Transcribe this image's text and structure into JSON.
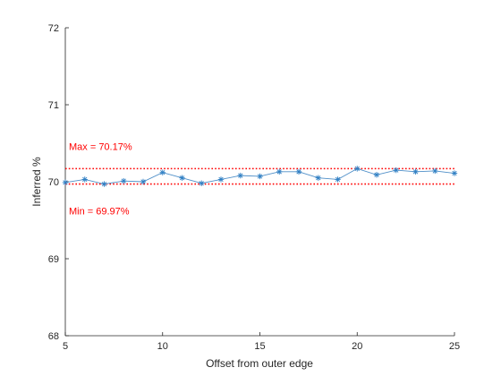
{
  "chart_data": {
    "type": "line",
    "xlabel": "Offset from outer edge",
    "ylabel": "Inferred %",
    "xlim": [
      5,
      25
    ],
    "ylim": [
      68,
      72
    ],
    "x_ticks": [
      5,
      10,
      15,
      20,
      25
    ],
    "y_ticks": [
      68,
      69,
      70,
      71,
      72
    ],
    "x_tick_labels": [
      "5",
      "10",
      "15",
      "20",
      "25"
    ],
    "y_tick_labels": [
      "68",
      "69",
      "70",
      "71",
      "72"
    ],
    "grid": false,
    "marker": "asterisk",
    "series_color": "#2f7fc4",
    "series": [
      {
        "x": [
          5,
          6,
          7,
          8,
          9,
          10,
          11,
          12,
          13,
          14,
          15,
          16,
          17,
          18,
          19,
          20,
          21,
          22,
          23,
          24,
          25
        ],
        "values": [
          69.99,
          70.03,
          69.97,
          70.01,
          70.0,
          70.12,
          70.05,
          69.98,
          70.03,
          70.08,
          70.07,
          70.13,
          70.13,
          70.05,
          70.03,
          70.17,
          70.09,
          70.15,
          70.13,
          70.14,
          70.11
        ]
      }
    ],
    "reference_lines": [
      {
        "label": "Max = 70.17%",
        "value": 70.17,
        "color": "#ff0000",
        "style": "dotted"
      },
      {
        "label": "Min = 69.97%",
        "value": 69.97,
        "color": "#ff0000",
        "style": "dotted"
      }
    ]
  }
}
